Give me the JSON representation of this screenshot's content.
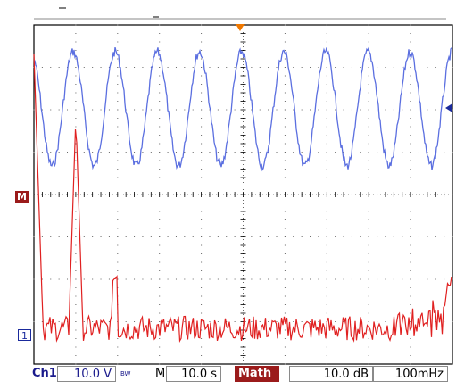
{
  "scope": {
    "colors": {
      "background": "#ffffff",
      "grid_frame": "#000000",
      "channel1": "#5b6fe0",
      "math": "#e02020",
      "math_badge": "#9b1b1b",
      "readout_text": "#1a1a8c"
    },
    "markers": {
      "math": "M",
      "ch1": "1"
    },
    "readouts": {
      "ch1_label": "Ch1",
      "ch1_scale": "10.0 V",
      "bw_symbol": "BW",
      "timebase_label": "M",
      "timebase_value": "10.0 s",
      "math_label": "Math",
      "math_scale": "10.0 dB",
      "math_span": "100mHz"
    },
    "icons": {
      "trigger_position": "trigger-position-icon",
      "trigger_level": "trigger-level-icon"
    }
  }
}
